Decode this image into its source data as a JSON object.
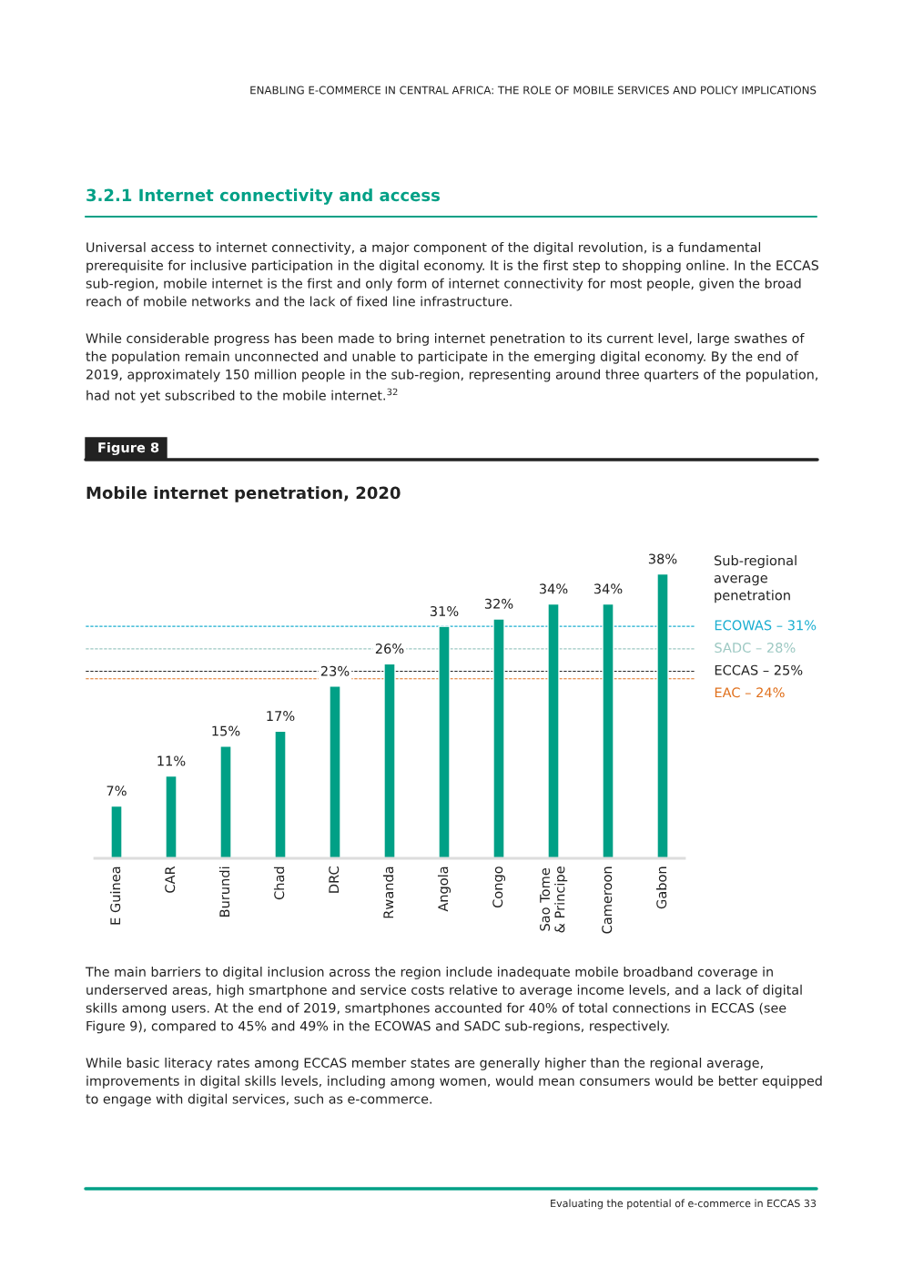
{
  "chart_data": {
    "type": "bar",
    "title": "Mobile internet penetration, 2020",
    "categories": [
      "E Guinea",
      "CAR",
      "Burundi",
      "Chad",
      "DRC",
      "Rwanda",
      "Angola",
      "Congo",
      "Sao Tome\n& Principe",
      "Cameroon",
      "Gabon"
    ],
    "values": [
      7,
      11,
      15,
      17,
      23,
      26,
      31,
      32,
      34,
      34,
      38
    ],
    "value_labels": [
      "7%",
      "11%",
      "15%",
      "17%",
      "23%",
      "26%",
      "31%",
      "32%",
      "34%",
      "34%",
      "38%"
    ],
    "color": "#00a086",
    "legend_title": "Sub-regional\naverage\npenetration",
    "ref_lines": [
      {
        "axis": "y",
        "value": 31,
        "label": "ECOWAS – 31%",
        "color": "#1aaed0",
        "line_style": "dashed"
      },
      {
        "axis": "y",
        "value": 28,
        "label": "SADC – 28%",
        "color": "#9cc8c2",
        "line_style": "dashed"
      },
      {
        "axis": "y",
        "value": 25,
        "label": "ECCAS – 25%",
        "color": "#222222",
        "line_style": "dashed"
      },
      {
        "axis": "y",
        "value": 24,
        "label": "EAC – 24%",
        "color": "#e0701c",
        "line_style": "dashed"
      }
    ],
    "grid": false,
    "annotations": [
      "ENABLING E-COMMERCE IN CENTRAL AFRICA: THE ROLE OF MOBILE SERVICES AND POLICY IMPLICATIONS",
      "3.2.1 Internet connectivity and access",
      "Universal access to internet connectivity, a major component of the digital revolution, is a fundamental\nprerequisite for inclusive participation in the digital economy. It is the first step to shopping online. In the ECCAS\nsub-region, mobile internet is the first and only form of internet connectivity for most people, given the broad\nreach of mobile networks and the lack of fixed line infrastructure.",
      "While considerable progress has been made to bring internet penetration to its current level, large swathes of\nthe population remain unconnected and unable to participate in the emerging digital economy. By the end of\n2019, approximately 150 million people in the sub-region, representing around three quarters of the population,\nhad not yet subscribed to the mobile internet.$^{32}$",
      "Figure 8",
      "The main barriers to digital inclusion across the region include inadequate mobile broadband coverage in\nunderserved areas, high smartphone and service costs relative to average income levels, and a lack of digital\nskills among users. At the end of 2019, smartphones accounted for 40% of total connections in ECCAS (see\nFigure 9), compared to 45% and 49% in the ECOWAS and SADC sub-regions, respectively.",
      "While basic literacy rates among ECCAS member states are generally higher than the regional average,\nimprovements in digital skills levels, including among women, would mean consumers would be better equipped\nto engage with digital services, such as e-commerce.",
      "Evaluating the potential of e-commerce in ECCAS 33"
    ]
  }
}
